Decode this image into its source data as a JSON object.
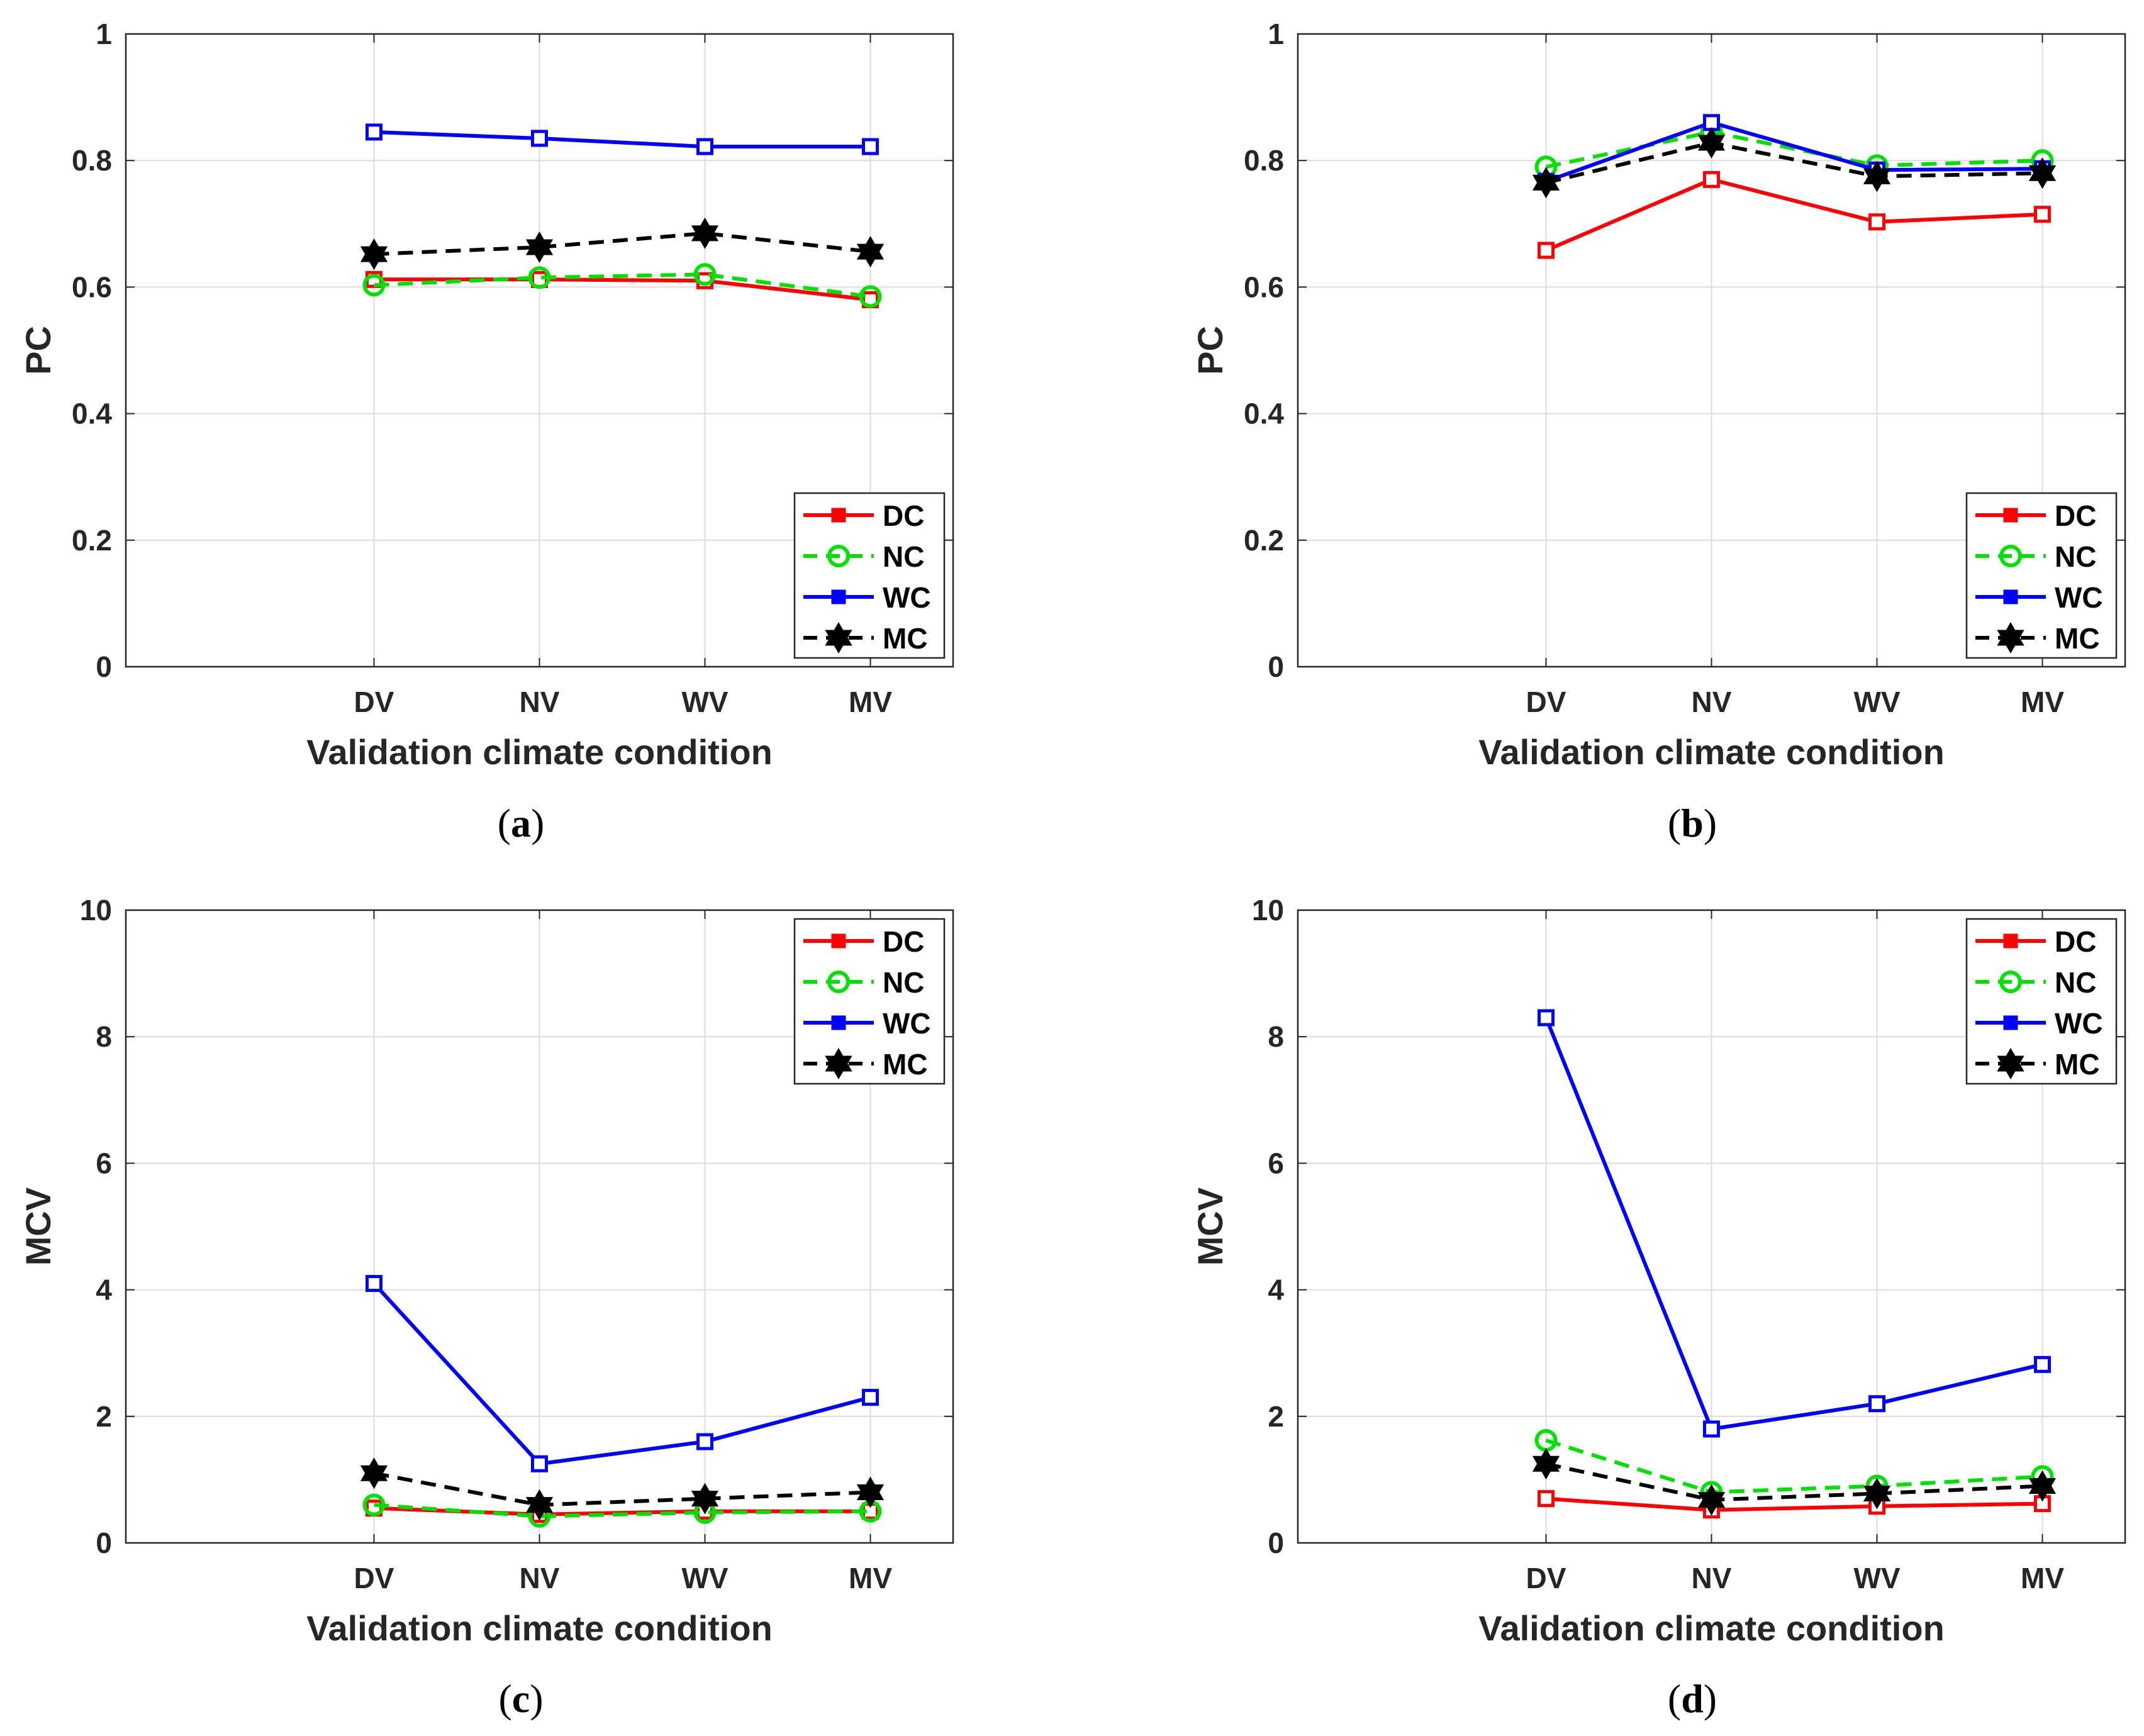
{
  "figure": {
    "background": "#ffffff"
  },
  "series_styles": {
    "DC": {
      "color": "#ff0000",
      "dash": "solid",
      "marker": "square"
    },
    "NC": {
      "color": "#00e000",
      "dash": "dashed",
      "marker": "circle"
    },
    "WC": {
      "color": "#0000ff",
      "dash": "solid",
      "marker": "square"
    },
    "MC": {
      "color": "#000000",
      "dash": "dashed",
      "marker": "hexagram"
    }
  },
  "chart_data": [
    {
      "type": "line",
      "panel": "a",
      "caption": "(a)",
      "categories": [
        "DV",
        "NV",
        "WV",
        "MV"
      ],
      "xlabel": "Validation climate condition",
      "ylabel": "PC",
      "ylim": [
        0,
        1
      ],
      "yticks": [
        "0",
        "0.2",
        "0.4",
        "0.6",
        "0.8",
        "1"
      ],
      "grid": true,
      "legend_position": "bottom-right",
      "series": [
        {
          "name": "DC",
          "values": [
            0.612,
            0.612,
            0.61,
            0.58
          ]
        },
        {
          "name": "NC",
          "values": [
            0.603,
            0.615,
            0.62,
            0.585
          ]
        },
        {
          "name": "WC",
          "values": [
            0.845,
            0.835,
            0.822,
            0.822
          ]
        },
        {
          "name": "MC",
          "values": [
            0.652,
            0.663,
            0.685,
            0.656
          ]
        }
      ]
    },
    {
      "type": "line",
      "panel": "b",
      "caption": "(b)",
      "categories": [
        "DV",
        "NV",
        "WV",
        "MV"
      ],
      "xlabel": "Validation climate condition",
      "ylabel": "PC",
      "ylim": [
        0,
        1
      ],
      "yticks": [
        "0",
        "0.2",
        "0.4",
        "0.6",
        "0.8",
        "1"
      ],
      "grid": true,
      "legend_position": "bottom-right",
      "series": [
        {
          "name": "DC",
          "values": [
            0.658,
            0.77,
            0.703,
            0.715
          ]
        },
        {
          "name": "NC",
          "values": [
            0.79,
            0.845,
            0.792,
            0.8
          ]
        },
        {
          "name": "WC",
          "values": [
            0.767,
            0.86,
            0.785,
            0.787
          ]
        },
        {
          "name": "MC",
          "values": [
            0.765,
            0.828,
            0.775,
            0.78
          ]
        }
      ]
    },
    {
      "type": "line",
      "panel": "c",
      "caption": "(c)",
      "categories": [
        "DV",
        "NV",
        "WV",
        "MV"
      ],
      "xlabel": "Validation climate condition",
      "ylabel": "MCV",
      "ylim": [
        0,
        10
      ],
      "yticks": [
        "0",
        "2",
        "4",
        "6",
        "8",
        "10"
      ],
      "grid": true,
      "legend_position": "top-right",
      "series": [
        {
          "name": "DC",
          "values": [
            0.55,
            0.45,
            0.5,
            0.5
          ]
        },
        {
          "name": "NC",
          "values": [
            0.6,
            0.42,
            0.48,
            0.5
          ]
        },
        {
          "name": "WC",
          "values": [
            4.1,
            1.25,
            1.6,
            2.3
          ]
        },
        {
          "name": "MC",
          "values": [
            1.1,
            0.6,
            0.7,
            0.8
          ]
        }
      ]
    },
    {
      "type": "line",
      "panel": "d",
      "caption": "(d)",
      "categories": [
        "DV",
        "NV",
        "WV",
        "MV"
      ],
      "xlabel": "Validation climate condition",
      "ylabel": "MCV",
      "ylim": [
        0,
        10
      ],
      "yticks": [
        "0",
        "2",
        "4",
        "6",
        "8",
        "10"
      ],
      "grid": true,
      "legend_position": "top-right",
      "series": [
        {
          "name": "DC",
          "values": [
            0.7,
            0.52,
            0.58,
            0.62
          ]
        },
        {
          "name": "NC",
          "values": [
            1.62,
            0.8,
            0.9,
            1.05
          ]
        },
        {
          "name": "WC",
          "values": [
            8.3,
            1.8,
            2.2,
            2.82
          ]
        },
        {
          "name": "MC",
          "values": [
            1.25,
            0.68,
            0.78,
            0.9
          ]
        }
      ]
    }
  ]
}
